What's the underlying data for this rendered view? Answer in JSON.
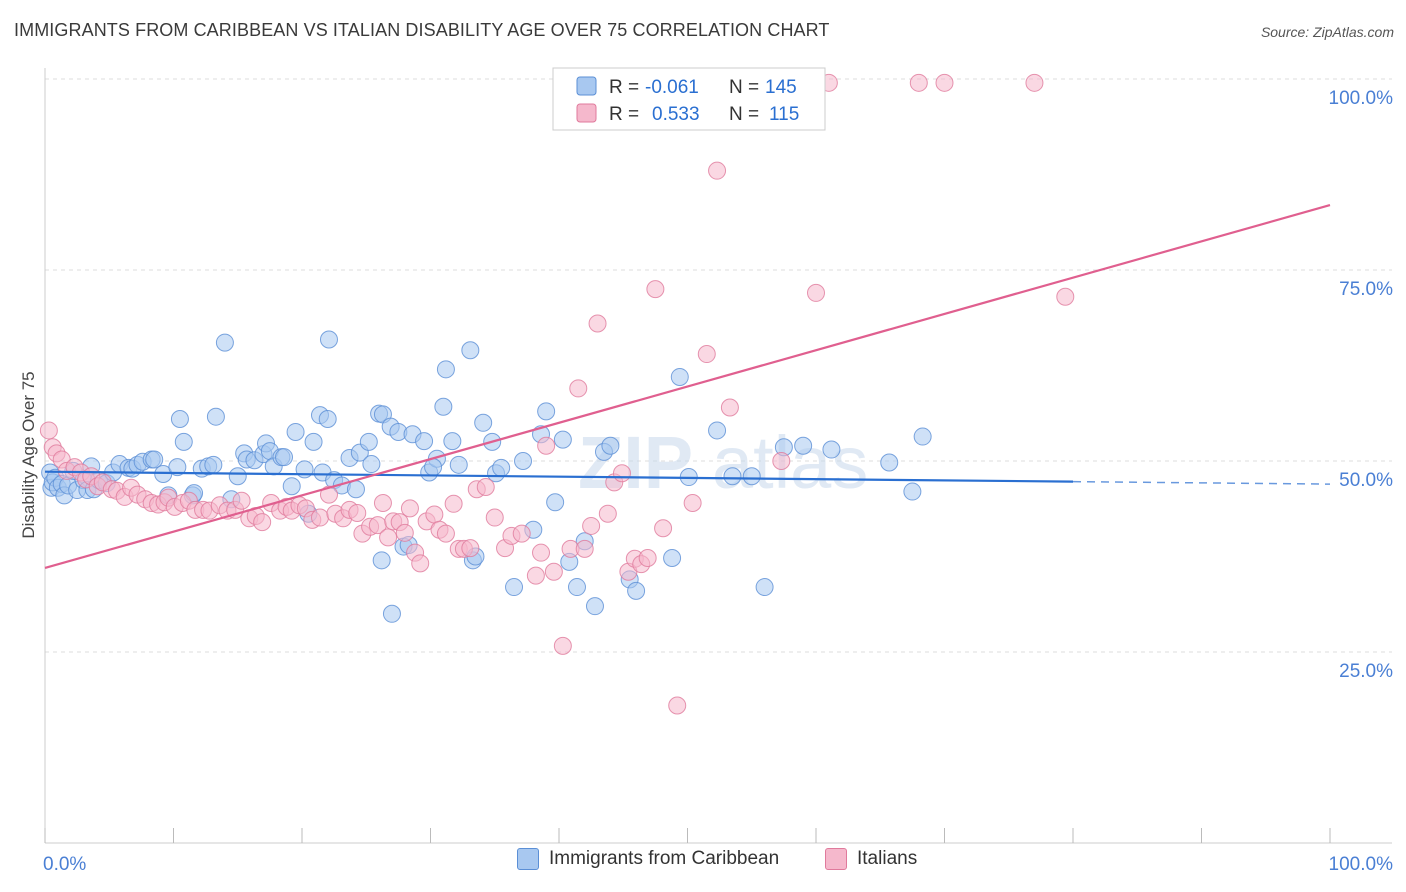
{
  "title": "IMMIGRANTS FROM CARIBBEAN VS ITALIAN DISABILITY AGE OVER 75 CORRELATION CHART",
  "source": "Source: ZipAtlas.com",
  "watermark": {
    "zip": "ZIP",
    "atlas": "atlas"
  },
  "colors": {
    "blue_fill": "#a8c8f0",
    "blue_stroke": "#5b8fd6",
    "blue_line": "#2a6fd1",
    "pink_fill": "#f5b8cc",
    "pink_stroke": "#e07a9c",
    "pink_line": "#e05f8f",
    "tick_label": "#4a7fd4",
    "grid": "#dddddd"
  },
  "legend": {
    "rows": [
      {
        "r_label": "R =",
        "r_value": "-0.061",
        "n_label": "N =",
        "n_value": "145"
      },
      {
        "r_label": "R =",
        "r_value": "0.533",
        "n_label": "N =",
        "n_value": "115"
      }
    ]
  },
  "bottom_legend": [
    "Immigrants from Caribbean",
    "Italians"
  ],
  "chart_data": {
    "type": "scatter",
    "title": "IMMIGRANTS FROM CARIBBEAN VS ITALIAN DISABILITY AGE OVER 75 CORRELATION CHART",
    "xlabel": "",
    "ylabel": "Disability Age Over 75",
    "xlim": [
      0,
      100
    ],
    "ylim": [
      0,
      100
    ],
    "x_tick_labels": [
      "0.0%",
      "100.0%"
    ],
    "y_tick_labels": [
      "25.0%",
      "50.0%",
      "75.0%",
      "100.0%"
    ],
    "y_ticks": [
      25,
      50,
      75,
      100
    ],
    "grid": true,
    "legend_position": "top-center",
    "series": [
      {
        "name": "Immigrants from Caribbean",
        "r": -0.061,
        "n": 145,
        "trend": {
          "x0": 0,
          "y0": 48.6,
          "x1": 80,
          "y1": 47.3,
          "dash_to": 100
        },
        "points": [
          [
            0.4,
            48.5
          ],
          [
            0.5,
            46.5
          ],
          [
            0.6,
            47.2
          ],
          [
            0.8,
            47.8
          ],
          [
            1,
            46.5
          ],
          [
            1.3,
            47
          ],
          [
            1.5,
            45.5
          ],
          [
            1.8,
            46.8
          ],
          [
            2.2,
            48.7
          ],
          [
            2.5,
            46.2
          ],
          [
            3,
            47.5
          ],
          [
            3.3,
            46.2
          ],
          [
            3.6,
            49.3
          ],
          [
            3.8,
            46.3
          ],
          [
            4.2,
            47.5
          ],
          [
            4.8,
            47.1
          ],
          [
            5.3,
            48.5
          ],
          [
            5.8,
            49.6
          ],
          [
            6.5,
            49.1
          ],
          [
            6.8,
            49
          ],
          [
            7.2,
            49.5
          ],
          [
            7.6,
            49.9
          ],
          [
            8.3,
            50.2
          ],
          [
            8.5,
            50.2
          ],
          [
            9.2,
            48.3
          ],
          [
            9.6,
            45.5
          ],
          [
            10.3,
            49.2
          ],
          [
            10.5,
            55.5
          ],
          [
            10.8,
            52.5
          ],
          [
            11.5,
            45.5
          ],
          [
            11.6,
            45.8
          ],
          [
            12.2,
            49
          ],
          [
            12.7,
            49.3
          ],
          [
            13.1,
            49.5
          ],
          [
            13.3,
            55.8
          ],
          [
            14,
            65.5
          ],
          [
            14.5,
            45
          ],
          [
            15,
            48
          ],
          [
            15.5,
            51
          ],
          [
            15.7,
            50.2
          ],
          [
            16.3,
            50.1
          ],
          [
            17,
            50.9
          ],
          [
            17.2,
            52.3
          ],
          [
            17.5,
            51.3
          ],
          [
            17.8,
            49.3
          ],
          [
            18.4,
            50.5
          ],
          [
            18.6,
            50.5
          ],
          [
            19.2,
            46.7
          ],
          [
            19.5,
            53.8
          ],
          [
            20.2,
            48.9
          ],
          [
            20.5,
            43.1
          ],
          [
            20.9,
            52.5
          ],
          [
            21.4,
            56
          ],
          [
            21.6,
            48.5
          ],
          [
            22,
            55.5
          ],
          [
            22.1,
            65.9
          ],
          [
            22.5,
            47.5
          ],
          [
            23.1,
            46.8
          ],
          [
            23.7,
            50.4
          ],
          [
            24.2,
            46.3
          ],
          [
            24.5,
            51.1
          ],
          [
            25.2,
            52.5
          ],
          [
            25.4,
            49.6
          ],
          [
            26,
            56.2
          ],
          [
            26.3,
            56.1
          ],
          [
            26.9,
            54.5
          ],
          [
            26.2,
            37
          ],
          [
            27,
            30
          ],
          [
            27.5,
            53.8
          ],
          [
            27.9,
            38.8
          ],
          [
            28.3,
            39
          ],
          [
            28.6,
            53.5
          ],
          [
            29.5,
            52.6
          ],
          [
            29.9,
            48.5
          ],
          [
            30.5,
            50.3
          ],
          [
            30.2,
            49.2
          ],
          [
            31,
            57.1
          ],
          [
            31.2,
            62
          ],
          [
            31.7,
            52.6
          ],
          [
            32.2,
            49.5
          ],
          [
            33.1,
            64.5
          ],
          [
            33.3,
            37
          ],
          [
            33.5,
            37.5
          ],
          [
            34.1,
            55
          ],
          [
            34.8,
            52.5
          ],
          [
            35.1,
            48.4
          ],
          [
            35.5,
            49.1
          ],
          [
            36.5,
            33.5
          ],
          [
            37.2,
            50
          ],
          [
            38,
            41
          ],
          [
            38.6,
            53.5
          ],
          [
            39,
            56.5
          ],
          [
            39.7,
            44.6
          ],
          [
            40.3,
            52.8
          ],
          [
            40.8,
            36.8
          ],
          [
            41.4,
            33.5
          ],
          [
            42,
            39.5
          ],
          [
            42.8,
            31
          ],
          [
            43.5,
            51.2
          ],
          [
            44,
            52
          ],
          [
            45.5,
            34.5
          ],
          [
            46,
            33
          ],
          [
            48.8,
            37.3
          ],
          [
            49.4,
            61
          ],
          [
            50.1,
            47.9
          ],
          [
            52.3,
            54
          ],
          [
            53.5,
            48
          ],
          [
            55,
            48
          ],
          [
            56,
            33.5
          ],
          [
            57.5,
            51.8
          ],
          [
            59,
            52
          ],
          [
            61.2,
            51.5
          ],
          [
            65.7,
            49.8
          ],
          [
            67.5,
            46
          ],
          [
            68.3,
            53.2
          ]
        ]
      },
      {
        "name": "Italians",
        "r": 0.533,
        "n": 115,
        "trend": {
          "x0": 0,
          "y0": 36,
          "x1": 100,
          "y1": 83.5
        },
        "points": [
          [
            0.3,
            54
          ],
          [
            0.6,
            51.8
          ],
          [
            0.9,
            51
          ],
          [
            1.3,
            50.2
          ],
          [
            1.7,
            48.7
          ],
          [
            2.3,
            49.2
          ],
          [
            2.8,
            48.5
          ],
          [
            3.2,
            47.6
          ],
          [
            3.6,
            48
          ],
          [
            4.1,
            46.7
          ],
          [
            4.5,
            47.2
          ],
          [
            5.2,
            46.3
          ],
          [
            5.6,
            46.1
          ],
          [
            6.2,
            45.3
          ],
          [
            6.7,
            46.5
          ],
          [
            7.2,
            45.6
          ],
          [
            7.8,
            45
          ],
          [
            8.3,
            44.5
          ],
          [
            8.8,
            44.3
          ],
          [
            9.3,
            44.6
          ],
          [
            9.6,
            45.2
          ],
          [
            10.1,
            44
          ],
          [
            10.7,
            44.5
          ],
          [
            11.2,
            44.8
          ],
          [
            11.7,
            43.6
          ],
          [
            12.3,
            43.6
          ],
          [
            12.8,
            43.5
          ],
          [
            13.6,
            44.2
          ],
          [
            14.2,
            43.5
          ],
          [
            14.8,
            43.6
          ],
          [
            15.3,
            44.8
          ],
          [
            15.9,
            42.5
          ],
          [
            16.4,
            42.8
          ],
          [
            16.9,
            42
          ],
          [
            17.6,
            44.5
          ],
          [
            18.3,
            43.5
          ],
          [
            18.8,
            44
          ],
          [
            19.2,
            43.5
          ],
          [
            19.8,
            44.2
          ],
          [
            20.3,
            43.8
          ],
          [
            20.8,
            42.3
          ],
          [
            21.4,
            42.6
          ],
          [
            22.1,
            45.6
          ],
          [
            22.6,
            43.1
          ],
          [
            23.2,
            42.5
          ],
          [
            23.7,
            43.6
          ],
          [
            24.3,
            43.2
          ],
          [
            24.7,
            40.5
          ],
          [
            25.3,
            41.4
          ],
          [
            25.9,
            41.6
          ],
          [
            26.3,
            44.5
          ],
          [
            26.7,
            40
          ],
          [
            27.1,
            42.1
          ],
          [
            27.6,
            42
          ],
          [
            28,
            40.6
          ],
          [
            28.4,
            43.8
          ],
          [
            28.8,
            38
          ],
          [
            29.2,
            36.6
          ],
          [
            29.7,
            42.1
          ],
          [
            30.3,
            43
          ],
          [
            30.7,
            41
          ],
          [
            31.2,
            40.5
          ],
          [
            31.8,
            44.4
          ],
          [
            32.2,
            38.5
          ],
          [
            32.6,
            38.5
          ],
          [
            33.1,
            38.6
          ],
          [
            33.6,
            46.3
          ],
          [
            34.3,
            46.6
          ],
          [
            35,
            42.6
          ],
          [
            35.8,
            38.6
          ],
          [
            36.3,
            40.2
          ],
          [
            37.1,
            40.5
          ],
          [
            38.2,
            35
          ],
          [
            38.6,
            38
          ],
          [
            39,
            52
          ],
          [
            39.6,
            35.5
          ],
          [
            40.3,
            25.8
          ],
          [
            40.9,
            38.5
          ],
          [
            41.5,
            59.5
          ],
          [
            42,
            38.5
          ],
          [
            42.5,
            41.5
          ],
          [
            43,
            68
          ],
          [
            43.8,
            43.1
          ],
          [
            44.3,
            47.2
          ],
          [
            44.9,
            48.4
          ],
          [
            45.4,
            35.5
          ],
          [
            45.9,
            37.2
          ],
          [
            46.4,
            36.5
          ],
          [
            46.9,
            37.3
          ],
          [
            47.5,
            72.5
          ],
          [
            48.1,
            41.2
          ],
          [
            49.2,
            18
          ],
          [
            50.4,
            44.5
          ],
          [
            51.5,
            64
          ],
          [
            52.3,
            88
          ],
          [
            53.3,
            57
          ],
          [
            57.3,
            50
          ],
          [
            60,
            72
          ],
          [
            61,
            99.5
          ],
          [
            68,
            99.5
          ],
          [
            70,
            99.5
          ],
          [
            77,
            99.5
          ],
          [
            79.4,
            71.5
          ]
        ]
      }
    ]
  }
}
